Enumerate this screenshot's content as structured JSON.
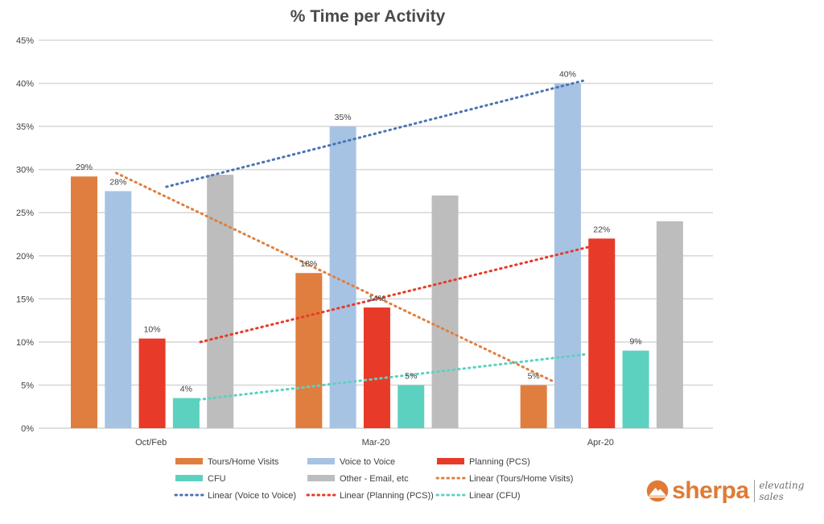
{
  "chart_data": {
    "type": "bar",
    "title": "% Time per Activity",
    "categories": [
      "Oct/Feb",
      "Mar-20",
      "Apr-20"
    ],
    "ylim": [
      0,
      45
    ],
    "yticks": [
      "0%",
      "5%",
      "10%",
      "15%",
      "20%",
      "25%",
      "30%",
      "35%",
      "40%",
      "45%"
    ],
    "grid": true,
    "legend_position": "bottom",
    "series": [
      {
        "name": "Tours/Home Visits",
        "color": "#E07E3F",
        "values": [
          29.2,
          18,
          5
        ],
        "labels": [
          "29%",
          "18%",
          "5%"
        ]
      },
      {
        "name": "Voice to Voice",
        "color": "#A7C3E3",
        "values": [
          27.5,
          35,
          40
        ],
        "labels": [
          "28%",
          "35%",
          "40%"
        ]
      },
      {
        "name": "Planning (PCS)",
        "color": "#E83A28",
        "values": [
          10.4,
          14,
          22
        ],
        "labels": [
          "10%",
          "14%",
          "22%"
        ]
      },
      {
        "name": "CFU",
        "color": "#5DD1C0",
        "values": [
          3.5,
          5,
          9
        ],
        "labels": [
          "4%",
          "5%",
          "9%"
        ]
      },
      {
        "name": "Other - Email, etc",
        "color": "#BDBDBD",
        "values": [
          29.4,
          27,
          24
        ],
        "labels": [
          "",
          "",
          ""
        ]
      }
    ],
    "trendlines": [
      {
        "name": "Linear (Tours/Home Visits)",
        "color": "#E07E3F",
        "start": 29.6,
        "end": 5.4
      },
      {
        "name": "Linear (Voice to Voice)",
        "color": "#4A74B4",
        "start": 28,
        "end": 40.3
      },
      {
        "name": "Linear (Planning (PCS))",
        "color": "#E83A28",
        "start": 10,
        "end": 21
      },
      {
        "name": "Linear (CFU)",
        "color": "#5DD1C0",
        "start": 3.1,
        "end": 8.6
      }
    ],
    "legend": [
      "Tours/Home Visits",
      "Voice to Voice",
      "Planning (PCS)",
      "CFU",
      "Other - Email, etc",
      "Linear (Tours/Home Visits)",
      "Linear (Voice to Voice)",
      "Linear (Planning (PCS))",
      "Linear (CFU)"
    ]
  },
  "brand": {
    "name": "sherpa",
    "tagline": "elevating sales",
    "color": "#E07A35",
    "logo_icon": "mountain-icon"
  }
}
